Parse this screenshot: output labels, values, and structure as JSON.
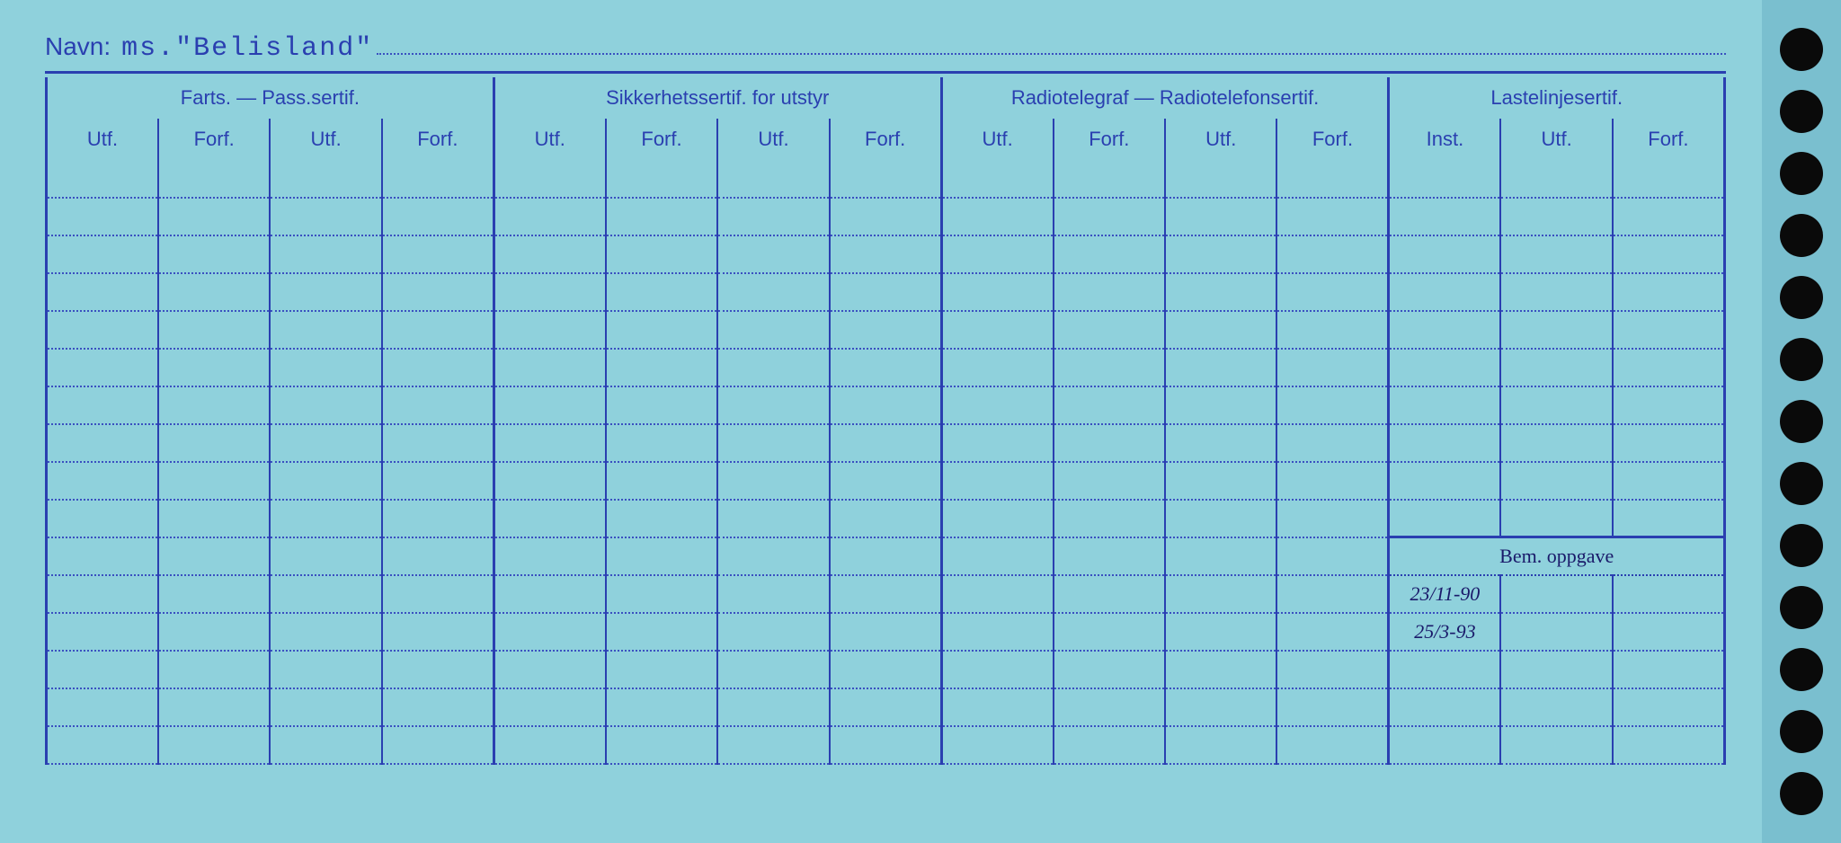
{
  "colors": {
    "card_bg": "#8fd1dc",
    "punch_bg": "#7abfcf",
    "line": "#2a3fb0",
    "text": "#2a3fb0",
    "hole": "#0a0a0a",
    "handwriting": "#1a1a6a",
    "dotted": "#3a50c0"
  },
  "navn": {
    "label": "Navn:",
    "value": "ms.\"Belisland\""
  },
  "groups": [
    {
      "title": "Farts. — Pass.sertif.",
      "cols": [
        "Utf.",
        "Forf.",
        "Utf.",
        "Forf."
      ]
    },
    {
      "title": "Sikkerhetssertif. for utstyr",
      "cols": [
        "Utf.",
        "Forf.",
        "Utf.",
        "Forf."
      ]
    },
    {
      "title": "Radiotelegraf — Radiotelefonsertif.",
      "cols": [
        "Utf.",
        "Forf.",
        "Utf.",
        "Forf."
      ]
    },
    {
      "title": "Lastelinjesertif.",
      "cols": [
        "Inst.",
        "Utf.",
        "Forf."
      ]
    }
  ],
  "bem_label": "Bem. oppgave",
  "body_row_count": 16,
  "bem_row_index": 10,
  "handwritten": {
    "row1": {
      "index": 11,
      "col": 12,
      "text": "23/11-90"
    },
    "row2": {
      "index": 12,
      "col": 12,
      "text": "25/3-93"
    }
  },
  "punch_holes": 13
}
